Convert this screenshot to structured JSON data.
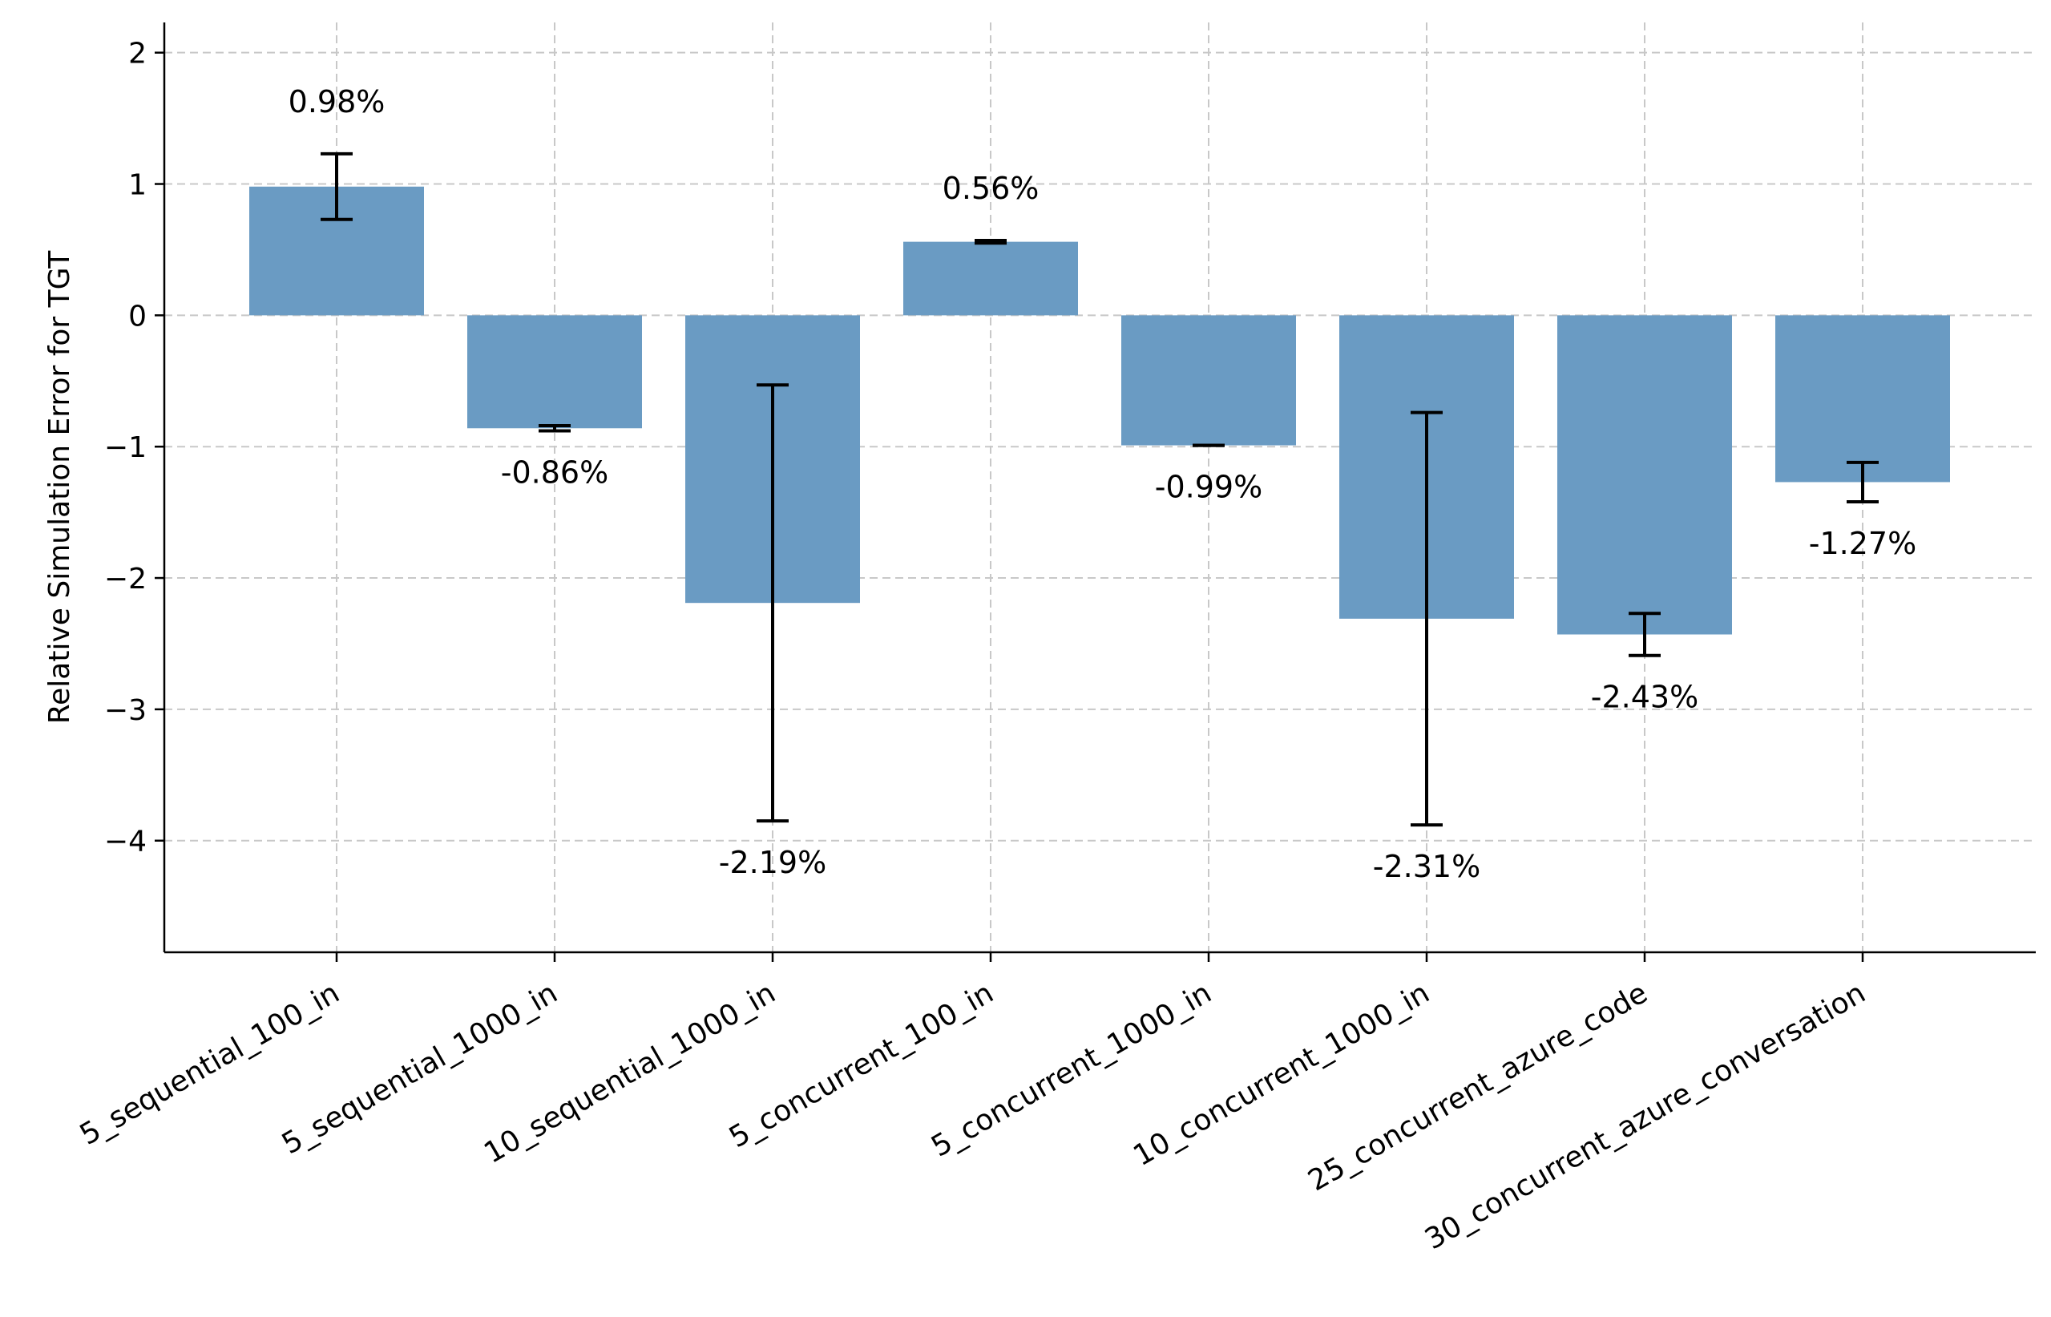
{
  "chart_data": {
    "type": "bar",
    "ylabel": "Relative Simulation Error for TGT",
    "xlabel": "",
    "categories": [
      "5_sequential_100_in",
      "5_sequential_1000_in",
      "10_sequential_1000_in",
      "5_concurrent_100_in",
      "5_concurrent_1000_in",
      "10_concurrent_1000_in",
      "25_concurrent_azure_code",
      "30_concurrent_azure_conversation"
    ],
    "values": [
      0.98,
      -0.86,
      -2.19,
      0.56,
      -0.99,
      -2.31,
      -2.43,
      -1.27
    ],
    "errors": [
      0.25,
      0.02,
      1.66,
      0.01,
      0.0,
      1.57,
      0.16,
      0.15
    ],
    "value_labels": [
      "0.98%",
      "-0.86%",
      "-2.19%",
      "0.56%",
      "-0.99%",
      "-2.31%",
      "-2.43%",
      "-1.27%"
    ],
    "yticks": [
      2,
      1,
      0,
      -1,
      -2,
      -3,
      -4
    ],
    "ytick_labels": [
      "2",
      "1",
      "0",
      "−1",
      "−2",
      "−3",
      "−4"
    ],
    "ylim": [
      -4.85,
      2.23
    ],
    "grid": true,
    "bar_color": "#6a9bc3",
    "error_color": "#000000"
  }
}
